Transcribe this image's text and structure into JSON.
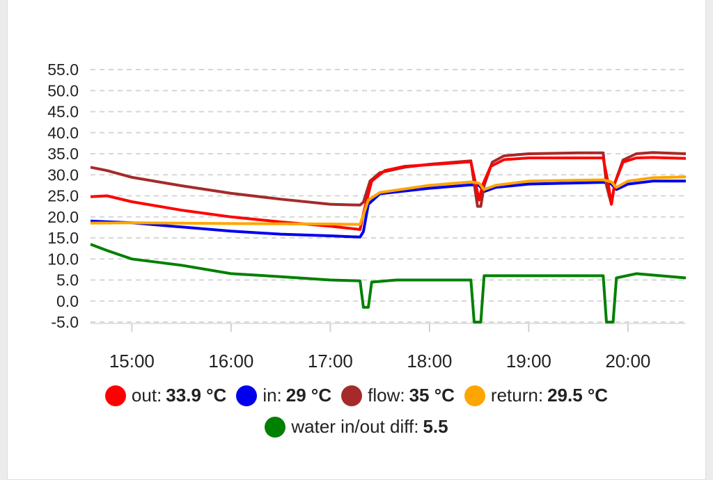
{
  "chart_data": {
    "type": "line",
    "title": "",
    "xlabel": "",
    "ylabel": "",
    "ylim": [
      -5.0,
      55.0
    ],
    "yticks": [
      "55.0",
      "50.0",
      "45.0",
      "40.0",
      "35.0",
      "30.0",
      "25.0",
      "20.0",
      "15.0",
      "10.0",
      "5.0",
      "0.0",
      "-5.0"
    ],
    "xlim": [
      "14:35",
      "20:35"
    ],
    "xticks": [
      "15:00",
      "16:00",
      "17:00",
      "18:00",
      "19:00",
      "20:00"
    ],
    "grid": true,
    "legend_placement": "bottom",
    "series": [
      {
        "name": "out",
        "color": "#ff0000",
        "legend_value": "33.9 °C",
        "points": [
          [
            "14:35",
            24.8
          ],
          [
            "14:45",
            25.0
          ],
          [
            "15:00",
            23.6
          ],
          [
            "15:30",
            21.6
          ],
          [
            "16:00",
            20.0
          ],
          [
            "16:30",
            18.8
          ],
          [
            "17:00",
            17.8
          ],
          [
            "17:18",
            17.0
          ],
          [
            "17:20",
            20.8
          ],
          [
            "17:25",
            28.5
          ],
          [
            "17:33",
            31.0
          ],
          [
            "17:45",
            32.0
          ],
          [
            "18:00",
            32.4
          ],
          [
            "18:15",
            32.8
          ],
          [
            "18:25",
            33.1
          ],
          [
            "18:27",
            29.5
          ],
          [
            "18:30",
            24.0
          ],
          [
            "18:32",
            27.5
          ],
          [
            "18:37",
            32.0
          ],
          [
            "18:45",
            33.6
          ],
          [
            "19:00",
            34.0
          ],
          [
            "19:30",
            34.0
          ],
          [
            "19:45",
            34.0
          ],
          [
            "19:48",
            28.0
          ],
          [
            "19:50",
            23.0
          ],
          [
            "19:52",
            28.0
          ],
          [
            "19:57",
            33.0
          ],
          [
            "20:05",
            34.0
          ],
          [
            "20:15",
            34.1
          ],
          [
            "20:35",
            33.9
          ]
        ]
      },
      {
        "name": "in",
        "color": "#0000ee",
        "legend_value": "29 °C",
        "points": [
          [
            "14:35",
            19.0
          ],
          [
            "15:00",
            18.6
          ],
          [
            "15:30",
            17.6
          ],
          [
            "16:00",
            16.6
          ],
          [
            "16:30",
            15.9
          ],
          [
            "17:00",
            15.5
          ],
          [
            "17:18",
            15.2
          ],
          [
            "17:20",
            16.5
          ],
          [
            "17:23",
            23.0
          ],
          [
            "17:30",
            25.5
          ],
          [
            "18:00",
            26.8
          ],
          [
            "18:25",
            27.6
          ],
          [
            "18:30",
            27.5
          ],
          [
            "18:33",
            26.0
          ],
          [
            "18:40",
            27.0
          ],
          [
            "19:00",
            27.8
          ],
          [
            "19:45",
            28.2
          ],
          [
            "19:50",
            27.8
          ],
          [
            "19:53",
            26.5
          ],
          [
            "20:00",
            27.8
          ],
          [
            "20:15",
            28.5
          ],
          [
            "20:35",
            28.5
          ]
        ]
      },
      {
        "name": "flow",
        "color": "#a52a2a",
        "legend_value": "35 °C",
        "points": [
          [
            "14:35",
            31.8
          ],
          [
            "14:45",
            31.0
          ],
          [
            "15:00",
            29.4
          ],
          [
            "15:30",
            27.4
          ],
          [
            "16:00",
            25.6
          ],
          [
            "16:30",
            24.2
          ],
          [
            "17:00",
            23.0
          ],
          [
            "17:18",
            22.8
          ],
          [
            "17:20",
            23.5
          ],
          [
            "17:24",
            28.5
          ],
          [
            "17:30",
            30.5
          ],
          [
            "17:45",
            31.8
          ],
          [
            "18:00",
            32.5
          ],
          [
            "18:15",
            33.0
          ],
          [
            "18:25",
            33.3
          ],
          [
            "18:27",
            28.0
          ],
          [
            "18:29",
            22.5
          ],
          [
            "18:31",
            22.5
          ],
          [
            "18:33",
            27.5
          ],
          [
            "18:38",
            33.0
          ],
          [
            "18:45",
            34.5
          ],
          [
            "19:00",
            35.0
          ],
          [
            "19:30",
            35.2
          ],
          [
            "19:45",
            35.2
          ],
          [
            "19:47",
            27.5
          ],
          [
            "19:50",
            23.0
          ],
          [
            "19:52",
            28.0
          ],
          [
            "19:57",
            33.5
          ],
          [
            "20:05",
            35.0
          ],
          [
            "20:15",
            35.3
          ],
          [
            "20:35",
            35.0
          ]
        ]
      },
      {
        "name": "return",
        "color": "#ffa500",
        "legend_value": "29.5 °C",
        "points": [
          [
            "14:35",
            18.5
          ],
          [
            "15:00",
            18.6
          ],
          [
            "16:00",
            18.4
          ],
          [
            "17:00",
            18.3
          ],
          [
            "17:18",
            18.2
          ],
          [
            "17:20",
            20.5
          ],
          [
            "17:23",
            24.0
          ],
          [
            "17:30",
            25.8
          ],
          [
            "18:00",
            27.5
          ],
          [
            "18:25",
            28.3
          ],
          [
            "18:30",
            28.0
          ],
          [
            "18:33",
            26.5
          ],
          [
            "18:40",
            27.5
          ],
          [
            "19:00",
            28.5
          ],
          [
            "19:45",
            28.8
          ],
          [
            "19:50",
            28.3
          ],
          [
            "19:53",
            27.0
          ],
          [
            "20:00",
            28.5
          ],
          [
            "20:15",
            29.3
          ],
          [
            "20:35",
            29.5
          ]
        ]
      },
      {
        "name": "water in/out diff",
        "color": "#008000",
        "legend_value": "5.5",
        "points": [
          [
            "14:35",
            13.5
          ],
          [
            "14:45",
            12.0
          ],
          [
            "15:00",
            10.0
          ],
          [
            "15:30",
            8.5
          ],
          [
            "16:00",
            6.5
          ],
          [
            "16:30",
            5.8
          ],
          [
            "17:00",
            5.0
          ],
          [
            "17:18",
            4.8
          ],
          [
            "17:20",
            -1.5
          ],
          [
            "17:23",
            -1.5
          ],
          [
            "17:25",
            4.5
          ],
          [
            "17:40",
            5.0
          ],
          [
            "18:00",
            5.0
          ],
          [
            "18:25",
            5.0
          ],
          [
            "18:27",
            -5.0
          ],
          [
            "18:31",
            -5.0
          ],
          [
            "18:33",
            6.0
          ],
          [
            "19:00",
            6.0
          ],
          [
            "19:45",
            6.0
          ],
          [
            "19:47",
            -5.0
          ],
          [
            "19:51",
            -5.0
          ],
          [
            "19:53",
            5.5
          ],
          [
            "20:05",
            6.5
          ],
          [
            "20:35",
            5.5
          ]
        ]
      }
    ]
  }
}
